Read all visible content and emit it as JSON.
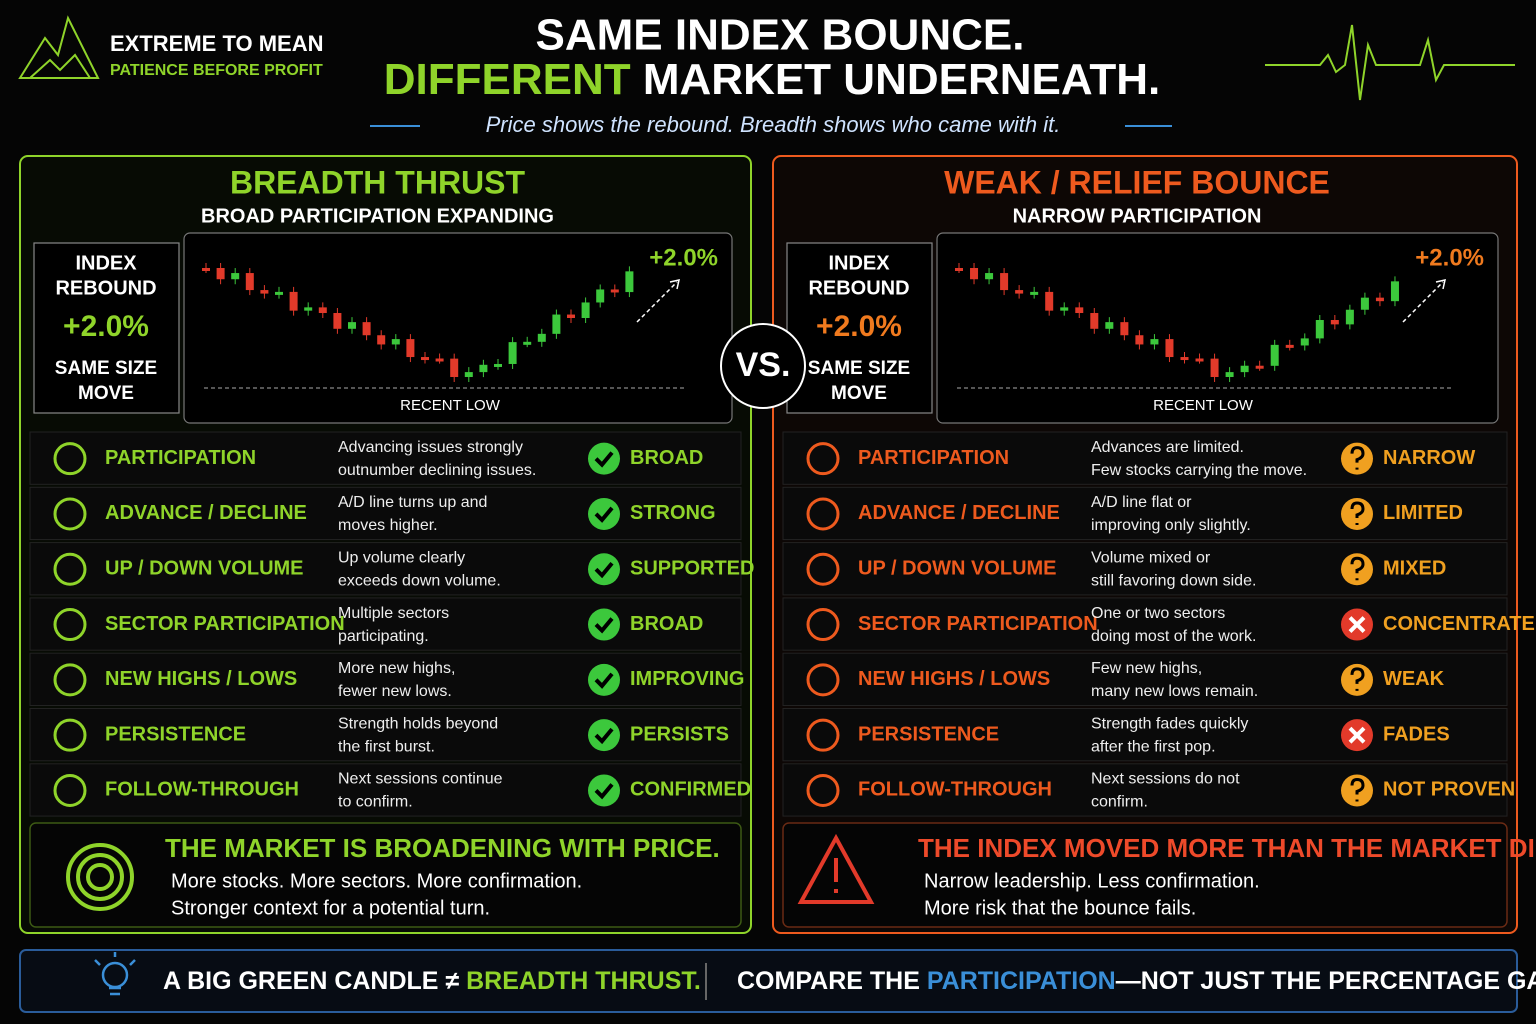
{
  "brand": {
    "name": "EXTREME TO MEAN",
    "tagline": "PATIENCE BEFORE PROFIT"
  },
  "header": {
    "title_line1": "SAME INDEX BOUNCE.",
    "title_line2_accent": "DIFFERENT",
    "title_line2_rest": "MARKET UNDERNEATH.",
    "subtitle": "Price shows the rebound. Breadth shows who came with it."
  },
  "vs": "VS.",
  "panels": [
    {
      "title": "BREADTH THRUST",
      "subtitle": "BROAD PARTICIPATION EXPANDING",
      "index_box": {
        "label_line1": "INDEX",
        "label_line2": "REBOUND",
        "value": "+2.0%",
        "note_line1": "SAME SIZE",
        "note_line2": "MOVE"
      },
      "chart": {
        "gain": "+2.0%",
        "low_label": "RECENT LOW"
      },
      "rows": [
        {
          "metric": "PARTICIPATION",
          "description": [
            "Advancing issues strongly",
            "outnumber declining issues."
          ],
          "status": "BROAD"
        },
        {
          "metric": "ADVANCE / DECLINE",
          "description": [
            "A/D line turns up and",
            "moves higher."
          ],
          "status": "STRONG"
        },
        {
          "metric": "UP / DOWN VOLUME",
          "description": [
            "Up volume clearly",
            "exceeds down volume."
          ],
          "status": "SUPPORTED"
        },
        {
          "metric": "SECTOR PARTICIPATION",
          "description": [
            "Multiple sectors",
            "participating."
          ],
          "status": "BROAD"
        },
        {
          "metric": "NEW HIGHS / LOWS",
          "description": [
            "More new highs,",
            "fewer new lows."
          ],
          "status": "IMPROVING"
        },
        {
          "metric": "PERSISTENCE",
          "description": [
            "Strength holds beyond",
            "the first burst."
          ],
          "status": "PERSISTS"
        },
        {
          "metric": "FOLLOW-THROUGH",
          "description": [
            "Next sessions continue",
            "to confirm."
          ],
          "status": "CONFIRMED"
        }
      ],
      "conclusion": {
        "headline": "THE MARKET IS BROADENING WITH PRICE.",
        "lines": [
          "More stocks. More sectors. More confirmation.",
          "Stronger context for a potential turn."
        ]
      }
    },
    {
      "title": "WEAK / RELIEF BOUNCE",
      "subtitle": "NARROW PARTICIPATION",
      "index_box": {
        "label_line1": "INDEX",
        "label_line2": "REBOUND",
        "value": "+2.0%",
        "note_line1": "SAME SIZE",
        "note_line2": "MOVE"
      },
      "chart": {
        "gain": "+2.0%",
        "low_label": "RECENT LOW"
      },
      "rows": [
        {
          "metric": "PARTICIPATION",
          "description": [
            "Advances are limited.",
            "Few stocks carrying the move."
          ],
          "status": "NARROW"
        },
        {
          "metric": "ADVANCE / DECLINE",
          "description": [
            "A/D line flat or",
            "improving only slightly."
          ],
          "status": "LIMITED"
        },
        {
          "metric": "UP / DOWN VOLUME",
          "description": [
            "Volume mixed or",
            "still favoring down side."
          ],
          "status": "MIXED"
        },
        {
          "metric": "SECTOR PARTICIPATION",
          "description": [
            "One or two sectors",
            "doing most of the work."
          ],
          "status": "CONCENTRATED"
        },
        {
          "metric": "NEW HIGHS / LOWS",
          "description": [
            "Few new highs,",
            "many new lows remain."
          ],
          "status": "WEAK"
        },
        {
          "metric": "PERSISTENCE",
          "description": [
            "Strength fades quickly",
            "after the first pop."
          ],
          "status": "FADES"
        },
        {
          "metric": "FOLLOW-THROUGH",
          "description": [
            "Next sessions do not",
            "confirm."
          ],
          "status": "NOT PROVEN"
        }
      ],
      "conclusion": {
        "headline": "THE INDEX MOVED MORE THAN THE MARKET DID.",
        "lines": [
          "Narrow leadership. Less confirmation.",
          "More risk that the bounce fails."
        ]
      }
    }
  ],
  "footer": {
    "left_prefix": "A BIG GREEN CANDLE ≠",
    "left_accent": "BREADTH THRUST.",
    "right_prefix": "COMPARE THE",
    "right_accent": "PARTICIPATION",
    "right_suffix": "—NOT JUST THE PERCENTAGE GAIN."
  }
}
